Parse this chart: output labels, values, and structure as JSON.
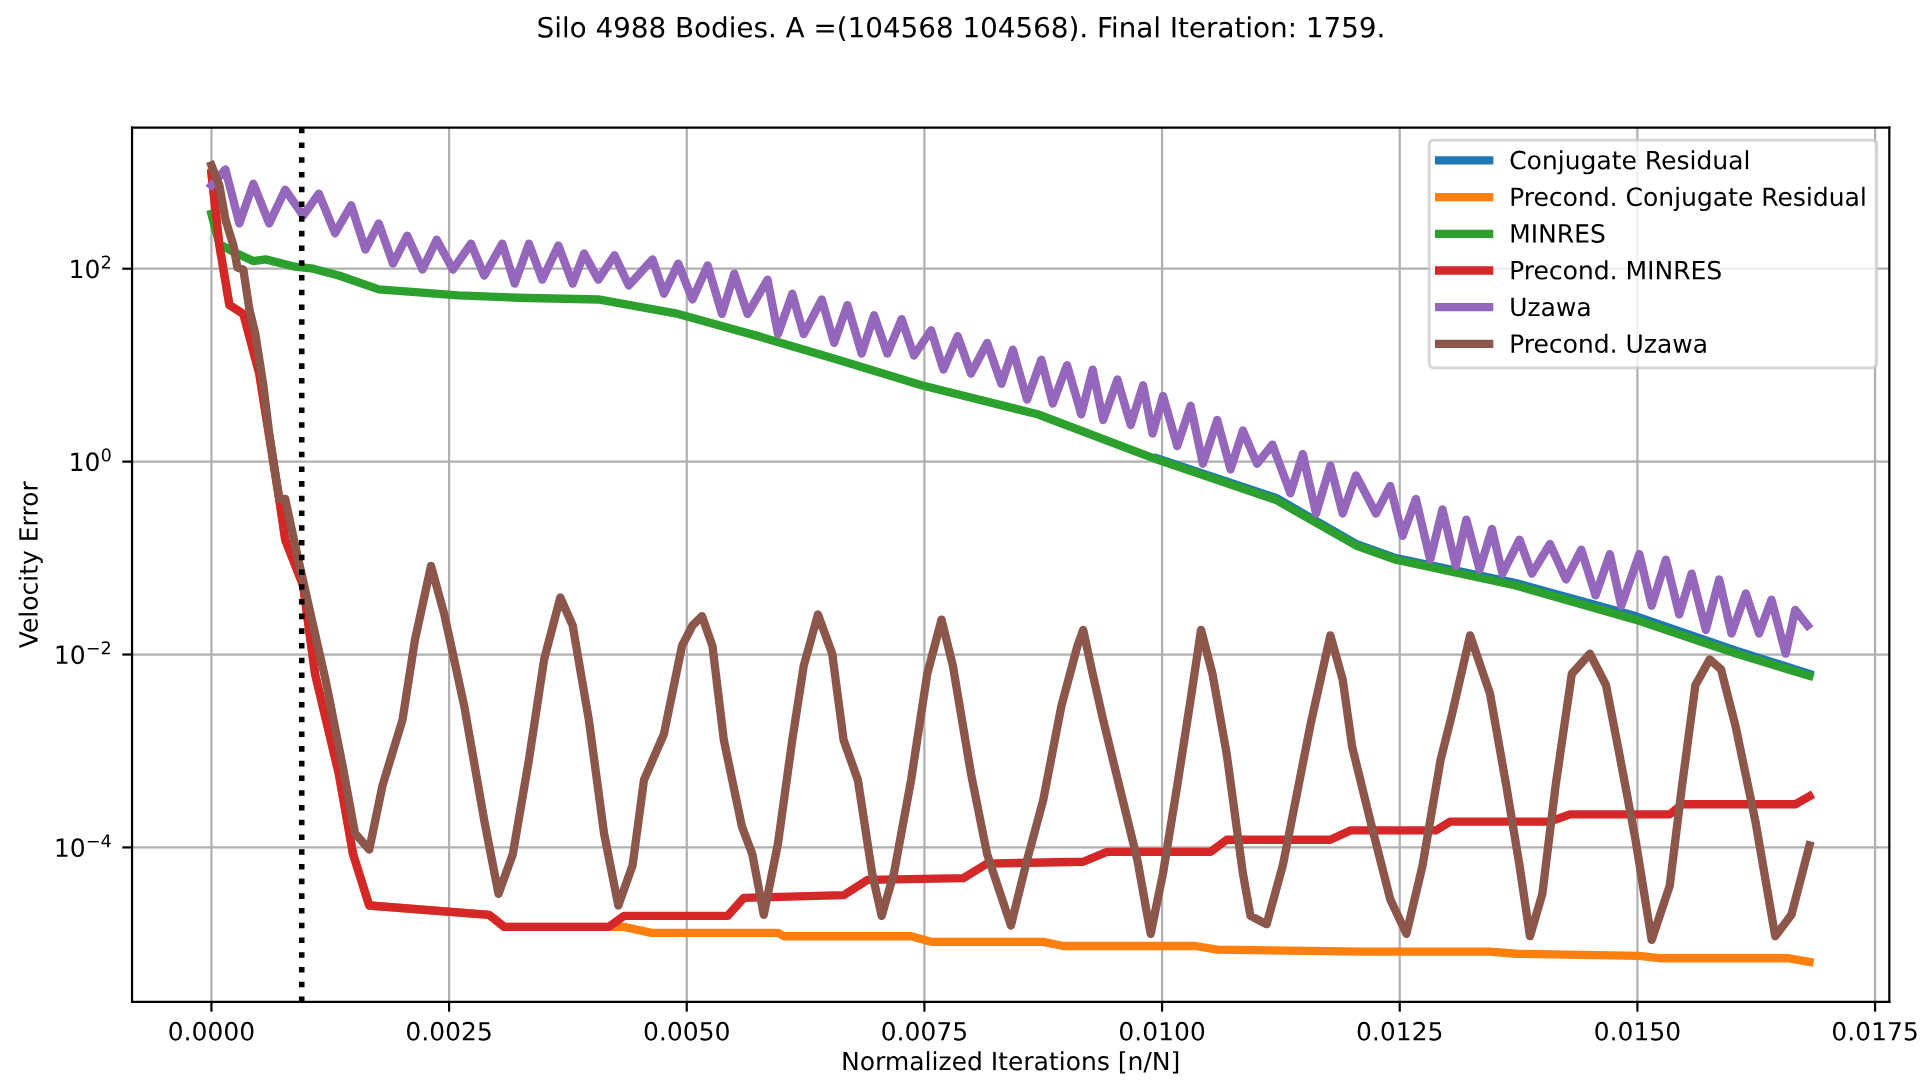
{
  "chart_data": {
    "type": "line",
    "title": "Silo 4988 Bodies. A =(104568 104568). Final Iteration: 1759.",
    "xlabel": "Normalized Iterations [n/N]",
    "ylabel": "Velocity Error",
    "log": "y",
    "grid": true,
    "legend": "top right",
    "line_style": "solid",
    "marker": "none",
    "xlim": [
      -0.000835,
      0.01765
    ],
    "ylim": [
      2.5e-06,
      2900
    ],
    "xticks": [
      {
        "value": 0,
        "label": "0.0000"
      },
      {
        "value": 0.0025,
        "label": "0.0025"
      },
      {
        "value": 0.005,
        "label": "0.0050"
      },
      {
        "value": 0.0075,
        "label": "0.0075"
      },
      {
        "value": 0.01,
        "label": "0.0100"
      },
      {
        "value": 0.0125,
        "label": "0.0125"
      },
      {
        "value": 0.015,
        "label": "0.0150"
      },
      {
        "value": 0.0175,
        "label": "0.0175"
      }
    ],
    "yticks": [
      {
        "value": 0.0001,
        "label": "10$^{−4}$"
      },
      {
        "value": 0.01,
        "label": "10$^{−2}$"
      },
      {
        "value": 1,
        "label": "10$^{0}$"
      },
      {
        "value": 100,
        "label": "10$^{2}$"
      }
    ],
    "ref_lines": [
      {
        "axis": "x",
        "value": 0.00095,
        "color": "#000000",
        "line_style": "dotted"
      }
    ],
    "series": [
      {
        "name": "Conjugate Residual",
        "color": "#1f77b4",
        "x": [
          0.00995,
          0.0112,
          0.01204,
          0.01246,
          0.01372,
          0.01498,
          0.01603,
          0.01681
        ],
        "values": [
          1.08,
          0.42,
          0.14,
          0.1,
          0.055,
          0.025,
          0.011,
          0.0063
        ]
      },
      {
        "name": "Precond. Conjugate Residual",
        "color": "#ff7f0e",
        "x": [
          0,
          8.4e-05,
          0.000189,
          0.000336,
          0.000504,
          0.000713,
          0.000776,
          0.000965,
          0.00109,
          0.00134,
          0.00149,
          0.00166,
          0.00292,
          0.00308,
          0.00418,
          0.00434,
          0.00463,
          0.00596,
          0.00602,
          0.00736,
          0.00757,
          0.00875,
          0.00896,
          0.01035,
          0.01058,
          0.01211,
          0.01345,
          0.01372,
          0.01502,
          0.01523,
          0.01658,
          0.01681
        ],
        "values": [
          980,
          174,
          42,
          34,
          8.1,
          0.41,
          0.155,
          0.052,
          0.0063,
          0.00058,
          8.5e-05,
          2.5e-05,
          2e-05,
          1.5e-05,
          1.5e-05,
          1.5e-05,
          1.3e-05,
          1.3e-05,
          1.2e-05,
          1.2e-05,
          1.05e-05,
          1.05e-05,
          9.5e-06,
          9.5e-06,
          8.7e-06,
          8.3e-06,
          8.3e-06,
          7.9e-06,
          7.5e-06,
          7.1e-06,
          7.1e-06,
          6.5e-06
        ]
      },
      {
        "name": "MINRES",
        "color": "#2ca02c",
        "x": [
          0,
          8.4e-05,
          0.00023,
          0.00044,
          0.00057,
          0.00088,
          0.00107,
          0.00134,
          0.00176,
          0.0026,
          0.00323,
          0.00407,
          0.00491,
          0.00575,
          0.00659,
          0.00747,
          0.00869,
          0.00995,
          0.0112,
          0.01204,
          0.01246,
          0.01372,
          0.01498,
          0.01603,
          0.01681
        ],
        "values": [
          370,
          180,
          150,
          120,
          125,
          105,
          100,
          85,
          61,
          53,
          50,
          48,
          34,
          20,
          11.4,
          6.2,
          3.1,
          1.05,
          0.4,
          0.135,
          0.096,
          0.052,
          0.023,
          0.0103,
          0.006
        ]
      },
      {
        "name": "Precond. MINRES",
        "color": "#d62728",
        "x": [
          0,
          8.4e-05,
          0.000189,
          0.000336,
          0.000504,
          0.000713,
          0.000776,
          0.000965,
          0.00109,
          0.00134,
          0.00149,
          0.00166,
          0.00292,
          0.00308,
          0.00418,
          0.00434,
          0.00543,
          0.0056,
          0.00665,
          0.0069,
          0.00791,
          0.00816,
          0.00917,
          0.00942,
          0.01051,
          0.01068,
          0.01177,
          0.01198,
          0.01288,
          0.01303,
          0.01408,
          0.01429,
          0.01534,
          0.01547,
          0.01666,
          0.01681
        ],
        "values": [
          980,
          174,
          42,
          34,
          8.1,
          0.41,
          0.155,
          0.052,
          0.0063,
          0.00058,
          8.5e-05,
          2.5e-05,
          2e-05,
          1.5e-05,
          1.5e-05,
          1.95e-05,
          1.95e-05,
          3e-05,
          3.2e-05,
          4.6e-05,
          4.8e-05,
          6.8e-05,
          7.1e-05,
          9e-05,
          9e-05,
          0.00012,
          0.00012,
          0.00015,
          0.00015,
          0.000185,
          0.000185,
          0.00022,
          0.00022,
          0.00028,
          0.00028,
          0.00034
        ]
      },
      {
        "name": "Uzawa",
        "color": "#9467bd",
        "x": [
          0,
          0.000147,
          0.000294,
          0.000441,
          0.000608,
          0.000776,
          0.000965,
          0.00113,
          0.0013,
          0.00147,
          0.00162,
          0.00176,
          0.00191,
          0.00206,
          0.00222,
          0.00237,
          0.00254,
          0.00273,
          0.00287,
          0.00306,
          0.00319,
          0.00334,
          0.00348,
          0.00365,
          0.0038,
          0.00392,
          0.00407,
          0.00424,
          0.00439,
          0.00464,
          0.00476,
          0.00491,
          0.00506,
          0.00522,
          0.00537,
          0.0055,
          0.00564,
          0.00585,
          0.00596,
          0.00611,
          0.00623,
          0.00642,
          0.00655,
          0.00669,
          0.00684,
          0.00697,
          0.00711,
          0.00726,
          0.00739,
          0.00757,
          0.0077,
          0.00785,
          0.00799,
          0.00816,
          0.00831,
          0.00843,
          0.00858,
          0.00873,
          0.00885,
          0.009,
          0.00915,
          0.00927,
          0.00938,
          0.00953,
          0.00967,
          0.0098,
          0.0099,
          0.01001,
          0.01016,
          0.0103,
          0.01043,
          0.01058,
          0.01072,
          0.01085,
          0.011,
          0.01116,
          0.01135,
          0.01148,
          0.01162,
          0.01177,
          0.0119,
          0.01204,
          0.01225,
          0.0124,
          0.01253,
          0.01267,
          0.01282,
          0.01295,
          0.01309,
          0.0132,
          0.01334,
          0.01347,
          0.01358,
          0.01376,
          0.01389,
          0.01408,
          0.01425,
          0.01441,
          0.01456,
          0.01471,
          0.01483,
          0.01502,
          0.01515,
          0.0153,
          0.01544,
          0.01557,
          0.01572,
          0.01586,
          0.01599,
          0.01614,
          0.01628,
          0.01641,
          0.01656,
          0.01666,
          0.01679
        ],
        "values": [
          730,
          1070,
          295,
          760,
          295,
          660,
          355,
          600,
          233,
          455,
          158,
          295,
          113,
          220,
          98,
          200,
          98,
          182,
          85,
          182,
          70,
          182,
          77,
          174,
          70,
          144,
          77,
          138,
          67,
          125,
          55,
          113,
          48,
          108,
          34,
          89,
          34,
          77,
          21,
          55,
          21,
          48,
          17,
          42,
          13.2,
          33,
          13.2,
          30,
          12.6,
          23,
          9,
          20,
          8.2,
          17,
          6.4,
          14.5,
          4.4,
          11.4,
          4.0,
          10,
          3.1,
          9,
          2.7,
          7.1,
          2.4,
          6.2,
          1.95,
          4.8,
          1.45,
          3.8,
          0.95,
          2.7,
          0.83,
          2.1,
          0.95,
          1.5,
          0.47,
          1.2,
          0.29,
          0.91,
          0.29,
          0.72,
          0.29,
          0.56,
          0.17,
          0.41,
          0.096,
          0.32,
          0.083,
          0.25,
          0.076,
          0.2,
          0.069,
          0.155,
          0.069,
          0.14,
          0.06,
          0.122,
          0.041,
          0.11,
          0.032,
          0.11,
          0.032,
          0.096,
          0.026,
          0.069,
          0.018,
          0.06,
          0.0165,
          0.043,
          0.0165,
          0.037,
          0.0102,
          0.029,
          0.02
        ]
      },
      {
        "name": "Precond. Uzawa",
        "color": "#8c564b",
        "x": [
          0,
          8.4e-05,
          0.000147,
          0.000231,
          0.000273,
          0.000336,
          0.000399,
          0.000462,
          0.000546,
          0.000608,
          0.000713,
          0.000776,
          0.000881,
          0.00107,
          0.0012,
          0.00138,
          0.00151,
          0.00166,
          0.0018,
          0.00201,
          0.00214,
          0.00231,
          0.00245,
          0.00266,
          0.00287,
          0.00302,
          0.00317,
          0.00334,
          0.0035,
          0.00367,
          0.0038,
          0.00397,
          0.00413,
          0.00428,
          0.00443,
          0.00455,
          0.00476,
          0.00495,
          0.00506,
          0.00516,
          0.00527,
          0.00539,
          0.00558,
          0.00569,
          0.00581,
          0.00596,
          0.00611,
          0.00623,
          0.00638,
          0.00653,
          0.00665,
          0.0068,
          0.00695,
          0.00705,
          0.00718,
          0.00736,
          0.00753,
          0.00768,
          0.0078,
          0.00799,
          0.00816,
          0.00841,
          0.00858,
          0.00875,
          0.00894,
          0.00911,
          0.00917,
          0.00927,
          0.00938,
          0.00957,
          0.00974,
          0.00988,
          0.01001,
          0.01016,
          0.0103,
          0.01041,
          0.01053,
          0.01068,
          0.01085,
          0.01093,
          0.0111,
          0.01127,
          0.01146,
          0.01156,
          0.01177,
          0.0119,
          0.012,
          0.01219,
          0.0124,
          0.01257,
          0.01274,
          0.01293,
          0.01305,
          0.01324,
          0.01335,
          0.01345,
          0.01362,
          0.01376,
          0.01387,
          0.014,
          0.01414,
          0.01431,
          0.0145,
          0.01467,
          0.01481,
          0.01498,
          0.01515,
          0.01534,
          0.01547,
          0.01561,
          0.01576,
          0.01588,
          0.01603,
          0.01624,
          0.01645,
          0.01662,
          0.01681
        ],
        "values": [
          1180,
          730,
          325,
          174,
          103,
          98,
          38,
          21,
          6.2,
          1.95,
          0.41,
          0.41,
          0.135,
          0.02,
          0.0055,
          0.0007,
          0.00014,
          9.5e-05,
          0.00044,
          0.0021,
          0.014,
          0.083,
          0.026,
          0.0029,
          0.00019,
          3.3e-05,
          8.5e-05,
          0.00081,
          0.0089,
          0.039,
          0.02,
          0.0021,
          0.00014,
          2.5e-05,
          6.5e-05,
          0.0005,
          0.0015,
          0.0123,
          0.02,
          0.025,
          0.0123,
          0.0013,
          0.000165,
          8.5e-05,
          2e-05,
          0.00011,
          0.0013,
          0.0076,
          0.026,
          0.0102,
          0.0013,
          0.0005,
          5.4e-05,
          1.95e-05,
          5.4e-05,
          0.0005,
          0.0063,
          0.023,
          0.0076,
          0.00058,
          8.5e-05,
          1.55e-05,
          7.4e-05,
          0.00031,
          0.0029,
          0.0123,
          0.018,
          0.0063,
          0.0021,
          0.00036,
          7.4e-05,
          1.27e-05,
          5.4e-05,
          0.00044,
          0.0034,
          0.018,
          0.0063,
          0.00093,
          5.4e-05,
          1.95e-05,
          1.6e-05,
          6.5e-05,
          0.00058,
          0.00185,
          0.0158,
          0.0055,
          0.0011,
          0.00019,
          2.9e-05,
          1.27e-05,
          6.5e-05,
          0.00081,
          0.0024,
          0.0158,
          0.0076,
          0.0039,
          0.00044,
          6.5e-05,
          1.2e-05,
          3.3e-05,
          0.00044,
          0.0063,
          0.0102,
          0.0048,
          0.00093,
          0.00012,
          1.1e-05,
          4e-05,
          0.00044,
          0.0048,
          0.0089,
          0.007,
          0.00185,
          0.00019,
          1.2e-05,
          2e-05,
          0.000105
        ]
      }
    ]
  }
}
